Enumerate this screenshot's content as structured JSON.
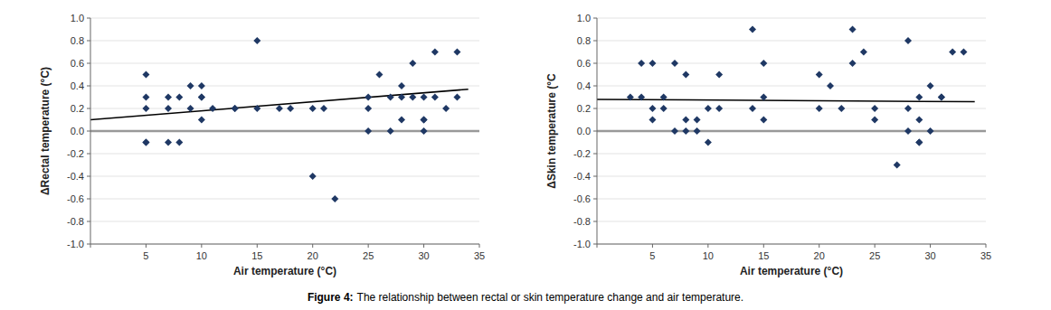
{
  "chart_data": [
    {
      "type": "scatter",
      "x_label": "Air temperature (°C)",
      "y_label": "ΔRectal temperature (°C)",
      "xlim": [
        0,
        35
      ],
      "xticks": [
        {
          "value": 0,
          "label": null
        },
        5,
        10,
        15,
        20,
        25,
        30,
        35
      ],
      "ylim": [
        -1.0,
        1.0
      ],
      "yticks": [
        {
          "value": -1.0,
          "label": "-1.0"
        },
        -0.8,
        -0.6,
        -0.4,
        -0.2,
        {
          "value": 0.0,
          "label": "0.0"
        },
        0.2,
        0.4,
        0.6,
        0.8,
        {
          "value": 1.0,
          "label": "1.0"
        }
      ],
      "grid": "y",
      "series": [
        {
          "type": "scatter",
          "marker": "diamond",
          "color": "#1F3864",
          "x": [
            5,
            5,
            5,
            5,
            5,
            7,
            7,
            7,
            8,
            8,
            9,
            9,
            10,
            10,
            10,
            10,
            11,
            13,
            13,
            15,
            15,
            17,
            18,
            20,
            20,
            21,
            22,
            25,
            25,
            25,
            26,
            27,
            27,
            28,
            28,
            28,
            29,
            29,
            30,
            30,
            30,
            30,
            31,
            31,
            32,
            33,
            33
          ],
          "values": [
            -0.1,
            -0.1,
            0.2,
            0.3,
            0.5,
            -0.1,
            0.2,
            0.3,
            -0.1,
            0.3,
            0.2,
            0.4,
            0.1,
            0.3,
            0.4,
            0.3,
            0.2,
            0.2,
            0.2,
            0.8,
            0.2,
            0.2,
            0.2,
            -0.4,
            0.2,
            0.2,
            -0.6,
            0.0,
            0.2,
            0.3,
            0.5,
            0.0,
            0.3,
            0.3,
            0.4,
            0.1,
            0.3,
            0.6,
            0.1,
            0.1,
            0.3,
            0.0,
            0.7,
            0.3,
            0.2,
            0.3,
            0.7
          ]
        },
        {
          "type": "line",
          "line_style": "solid",
          "color": "#000000",
          "x": [
            0,
            34
          ],
          "values": [
            0.1,
            0.37
          ]
        }
      ]
    },
    {
      "type": "scatter",
      "x_label": "Air temperature (°C)",
      "y_label": "ΔSkin temperature (°C",
      "xlim": [
        0,
        35
      ],
      "xticks": [
        {
          "value": 0,
          "label": null
        },
        5,
        10,
        15,
        20,
        25,
        30,
        35
      ],
      "ylim": [
        -1.0,
        1.0
      ],
      "yticks": [
        {
          "value": -1.0,
          "label": "-1.0"
        },
        -0.8,
        -0.6,
        -0.4,
        -0.2,
        {
          "value": 0.0,
          "label": "0.0"
        },
        0.2,
        0.4,
        0.6,
        0.8,
        {
          "value": 1.0,
          "label": "1.0"
        }
      ],
      "grid": "y",
      "series": [
        {
          "type": "scatter",
          "marker": "diamond",
          "color": "#1F3864",
          "x": [
            3,
            4,
            4,
            5,
            5,
            5,
            6,
            6,
            7,
            7,
            8,
            8,
            8,
            9,
            9,
            10,
            10,
            11,
            11,
            14,
            14,
            15,
            15,
            15,
            20,
            20,
            21,
            22,
            23,
            23,
            24,
            25,
            25,
            27,
            28,
            28,
            28,
            29,
            29,
            29,
            29,
            30,
            30,
            31,
            31,
            32,
            33
          ],
          "values": [
            0.3,
            0.6,
            0.3,
            0.6,
            0.2,
            0.1,
            0.3,
            0.2,
            0.0,
            0.6,
            0.5,
            0.1,
            0.0,
            0.1,
            0.0,
            0.2,
            -0.1,
            0.5,
            0.2,
            0.9,
            0.2,
            0.6,
            0.1,
            0.3,
            0.5,
            0.2,
            0.4,
            0.2,
            0.9,
            0.6,
            0.7,
            0.2,
            0.1,
            -0.3,
            0.8,
            0.2,
            0.0,
            0.3,
            0.1,
            -0.1,
            -0.1,
            0.4,
            0.0,
            0.3,
            0.3,
            0.7,
            0.7
          ]
        },
        {
          "type": "line",
          "line_style": "solid",
          "color": "#000000",
          "x": [
            0,
            34
          ],
          "values": [
            0.28,
            0.26
          ]
        }
      ]
    }
  ],
  "caption": [
    "Figure 4:",
    "The relationship between rectal or skin temperature change and air temperature."
  ]
}
